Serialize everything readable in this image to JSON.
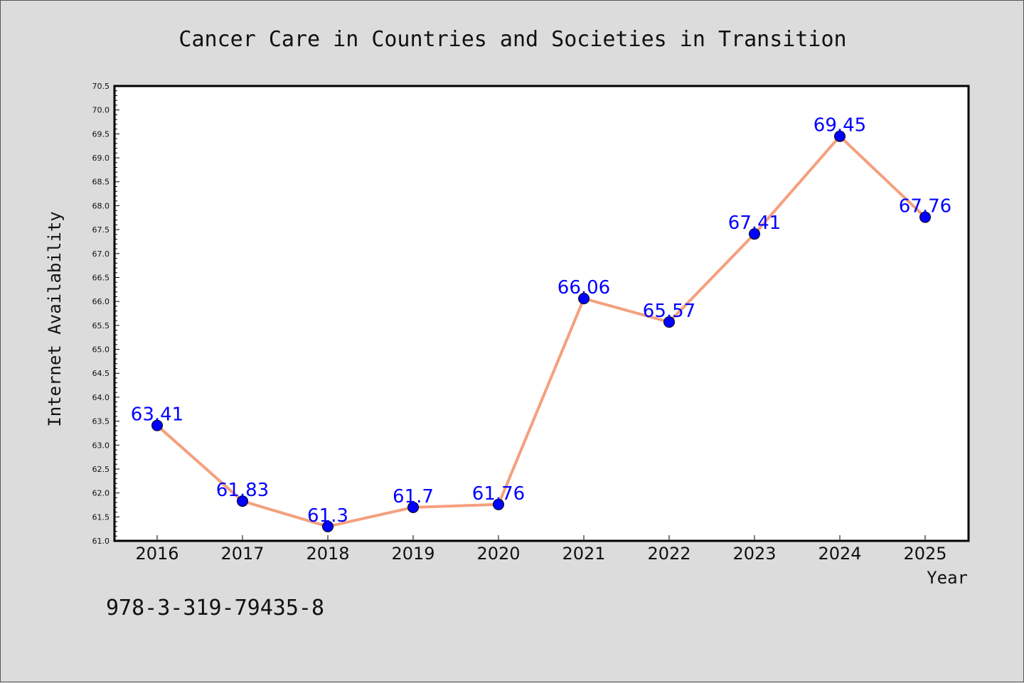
{
  "chart_data": {
    "type": "line",
    "title": "Cancer Care in Countries and Societies in Transition",
    "xlabel": "Year",
    "ylabel": "Internet Availability",
    "categories": [
      "2016",
      "2017",
      "2018",
      "2019",
      "2020",
      "2021",
      "2022",
      "2023",
      "2024",
      "2025"
    ],
    "series": [
      {
        "values": [
          63.41,
          61.83,
          61.3,
          61.7,
          61.76,
          66.06,
          65.57,
          67.41,
          69.45,
          67.76
        ],
        "labels": [
          "63.41",
          "61.83",
          "61.3",
          "61.7",
          "61.76",
          "66.06",
          "65.57",
          "67.41",
          "69.45",
          "67.76"
        ],
        "line_color": "#f4a07e",
        "marker_color": "#0000ff"
      }
    ],
    "ylim": [
      61.0,
      70.5
    ],
    "yticks": [
      "61.0",
      "61.5",
      "62.0",
      "62.5",
      "63.0",
      "63.5",
      "64.0",
      "64.5",
      "65.0",
      "65.5",
      "66.0",
      "66.5",
      "67.0",
      "67.5",
      "68.0",
      "68.5",
      "69.0",
      "69.5",
      "70.0",
      "70.5"
    ],
    "grid": false,
    "legend": "none"
  },
  "footer": {
    "isbn": "978-3-319-79435-8"
  },
  "colors": {
    "background": "#dcdcdc",
    "plot_background": "#ffffff",
    "line": "#f4a07e",
    "marker": "#0000ff",
    "data_label": "#0000ff"
  }
}
